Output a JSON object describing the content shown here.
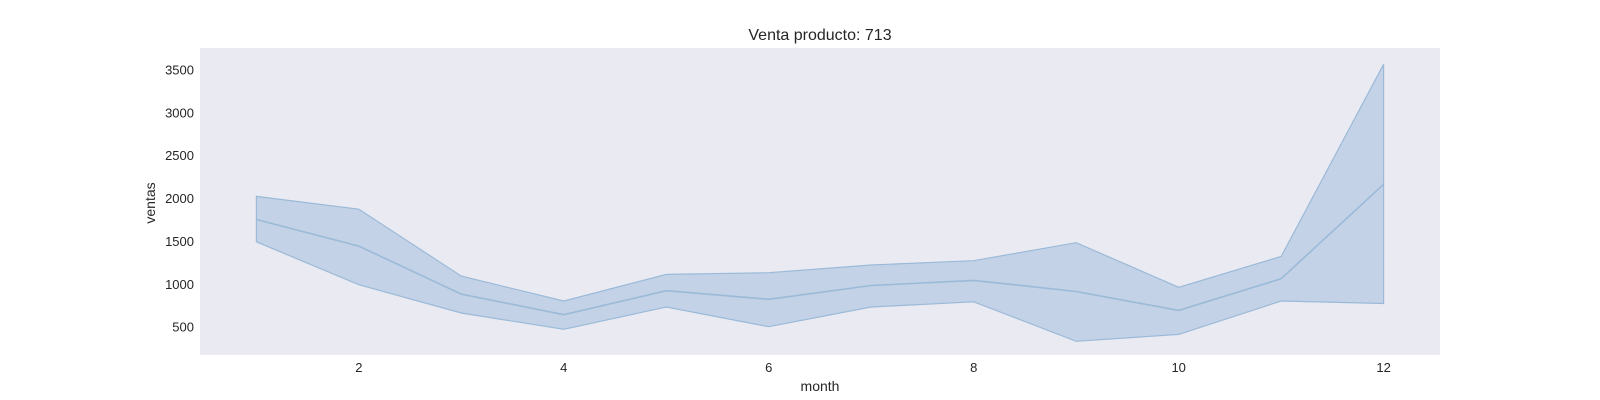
{
  "chart_data": {
    "type": "line",
    "title": "Venta producto: 713",
    "xlabel": "month",
    "ylabel": "ventas",
    "xlim": [
      0.45,
      12.55
    ],
    "ylim": [
      170,
      3750
    ],
    "x_ticks": [
      2,
      4,
      6,
      8,
      10,
      12
    ],
    "y_ticks": [
      500,
      1000,
      1500,
      2000,
      2500,
      3000,
      3500
    ],
    "grid": false,
    "colors": {
      "plot_bg": "#eaeaf2",
      "line": "#9bbad8",
      "band": "#a8c2dd"
    },
    "series": [
      {
        "x": [
          1,
          2,
          3,
          4,
          5,
          6,
          7,
          8,
          9,
          10,
          11,
          12
        ],
        "y": [
          1750,
          1440,
          880,
          640,
          920,
          820,
          980,
          1040,
          910,
          690,
          1060,
          2160
        ],
        "ci_low": [
          1490,
          990,
          660,
          470,
          730,
          500,
          730,
          790,
          330,
          410,
          800,
          770
        ],
        "ci_high": [
          2020,
          1870,
          1090,
          800,
          1110,
          1130,
          1220,
          1270,
          1480,
          960,
          1320,
          3560
        ]
      }
    ]
  }
}
